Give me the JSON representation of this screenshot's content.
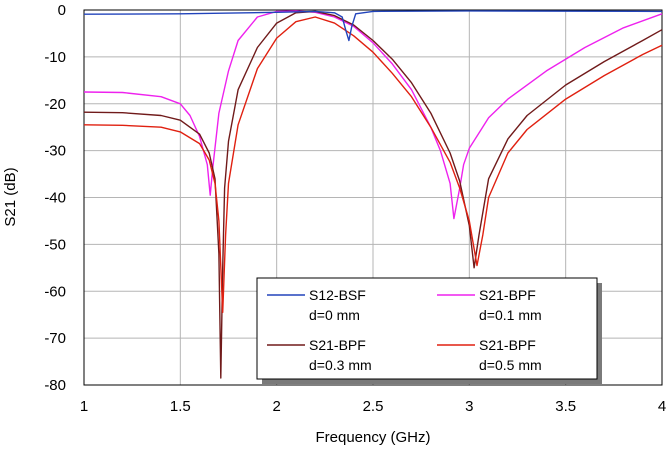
{
  "chart_data": {
    "type": "line",
    "title": "",
    "xlabel": "Frequency (GHz)",
    "ylabel": "S21 (dB)",
    "xlim": [
      1,
      4
    ],
    "ylim": [
      -80,
      0
    ],
    "x_ticks": [
      "1",
      "1.5",
      "2",
      "2.5",
      "3",
      "3.5",
      "4"
    ],
    "y_ticks": [
      "0",
      "-10",
      "-20",
      "-30",
      "-40",
      "-50",
      "-60",
      "-70",
      "-80"
    ],
    "grid": true,
    "legend_position": "bottom-center",
    "series": [
      {
        "name": "S12-BSF",
        "subtitle": "d=0 mm",
        "color": "#2244bb",
        "points": [
          [
            1.0,
            -0.9
          ],
          [
            1.5,
            -0.8
          ],
          [
            2.0,
            -0.5
          ],
          [
            2.2,
            -0.3
          ],
          [
            2.3,
            -0.6
          ],
          [
            2.34,
            -1.5
          ],
          [
            2.36,
            -4.5
          ],
          [
            2.375,
            -6.5
          ],
          [
            2.39,
            -3.5
          ],
          [
            2.41,
            -0.8
          ],
          [
            2.5,
            -0.3
          ],
          [
            3.0,
            -0.2
          ],
          [
            4.0,
            -0.3
          ]
        ]
      },
      {
        "name": "S21-BPF",
        "subtitle": "d=0.3 mm",
        "color": "#701a1a",
        "points": [
          [
            1.0,
            -21.8
          ],
          [
            1.2,
            -21.9
          ],
          [
            1.4,
            -22.5
          ],
          [
            1.5,
            -23.5
          ],
          [
            1.6,
            -26.5
          ],
          [
            1.65,
            -30.5
          ],
          [
            1.68,
            -36
          ],
          [
            1.7,
            -52
          ],
          [
            1.71,
            -78.5
          ],
          [
            1.72,
            -55
          ],
          [
            1.73,
            -38
          ],
          [
            1.75,
            -28
          ],
          [
            1.8,
            -17
          ],
          [
            1.9,
            -8
          ],
          [
            2.0,
            -2.8
          ],
          [
            2.1,
            -0.6
          ],
          [
            2.2,
            -0.3
          ],
          [
            2.3,
            -1.2
          ],
          [
            2.4,
            -3.2
          ],
          [
            2.5,
            -6.5
          ],
          [
            2.6,
            -10.5
          ],
          [
            2.7,
            -15.5
          ],
          [
            2.8,
            -22
          ],
          [
            2.9,
            -30.5
          ],
          [
            2.95,
            -36.5
          ],
          [
            3.0,
            -46
          ],
          [
            3.025,
            -55
          ],
          [
            3.05,
            -48
          ],
          [
            3.1,
            -36
          ],
          [
            3.2,
            -27.5
          ],
          [
            3.3,
            -22.5
          ],
          [
            3.5,
            -16
          ],
          [
            3.7,
            -11
          ],
          [
            3.9,
            -6.5
          ],
          [
            4.0,
            -4.2
          ]
        ]
      },
      {
        "name": "S21-BPF",
        "subtitle": "d=0.1 mm",
        "color": "#ee22ee",
        "points": [
          [
            1.0,
            -17.5
          ],
          [
            1.2,
            -17.6
          ],
          [
            1.4,
            -18.5
          ],
          [
            1.5,
            -20
          ],
          [
            1.55,
            -22.5
          ],
          [
            1.6,
            -27
          ],
          [
            1.64,
            -33
          ],
          [
            1.655,
            -39.5
          ],
          [
            1.67,
            -33
          ],
          [
            1.7,
            -22
          ],
          [
            1.75,
            -13
          ],
          [
            1.8,
            -6.5
          ],
          [
            1.9,
            -1.5
          ],
          [
            2.0,
            -0.3
          ],
          [
            2.1,
            -0.2
          ],
          [
            2.2,
            -0.5
          ],
          [
            2.3,
            -1.5
          ],
          [
            2.4,
            -3.5
          ],
          [
            2.5,
            -7
          ],
          [
            2.6,
            -11.5
          ],
          [
            2.7,
            -17
          ],
          [
            2.8,
            -25
          ],
          [
            2.85,
            -30
          ],
          [
            2.9,
            -37
          ],
          [
            2.92,
            -44.5
          ],
          [
            2.95,
            -38
          ],
          [
            2.97,
            -33
          ],
          [
            3.0,
            -29.5
          ],
          [
            3.1,
            -23
          ],
          [
            3.2,
            -19
          ],
          [
            3.4,
            -13
          ],
          [
            3.6,
            -8
          ],
          [
            3.8,
            -3.8
          ],
          [
            4.0,
            -0.8
          ]
        ]
      },
      {
        "name": "S21-BPF",
        "subtitle": "d=0.5 mm",
        "color": "#e02010",
        "points": [
          [
            1.0,
            -24.5
          ],
          [
            1.2,
            -24.6
          ],
          [
            1.4,
            -25
          ],
          [
            1.5,
            -26
          ],
          [
            1.6,
            -28.5
          ],
          [
            1.65,
            -32
          ],
          [
            1.68,
            -37
          ],
          [
            1.7,
            -45
          ],
          [
            1.72,
            -64.5
          ],
          [
            1.735,
            -48
          ],
          [
            1.75,
            -37
          ],
          [
            1.8,
            -24.5
          ],
          [
            1.9,
            -12.5
          ],
          [
            2.0,
            -6
          ],
          [
            2.1,
            -2.5
          ],
          [
            2.2,
            -1.5
          ],
          [
            2.3,
            -2.8
          ],
          [
            2.4,
            -5.5
          ],
          [
            2.5,
            -9
          ],
          [
            2.6,
            -13.5
          ],
          [
            2.7,
            -18.5
          ],
          [
            2.8,
            -25
          ],
          [
            2.9,
            -32.5
          ],
          [
            2.95,
            -38
          ],
          [
            3.0,
            -45
          ],
          [
            3.04,
            -54.5
          ],
          [
            3.07,
            -48
          ],
          [
            3.1,
            -40
          ],
          [
            3.2,
            -30.5
          ],
          [
            3.3,
            -25.5
          ],
          [
            3.5,
            -19
          ],
          [
            3.7,
            -14
          ],
          [
            3.9,
            -9.5
          ],
          [
            4.0,
            -7.5
          ]
        ]
      }
    ]
  }
}
